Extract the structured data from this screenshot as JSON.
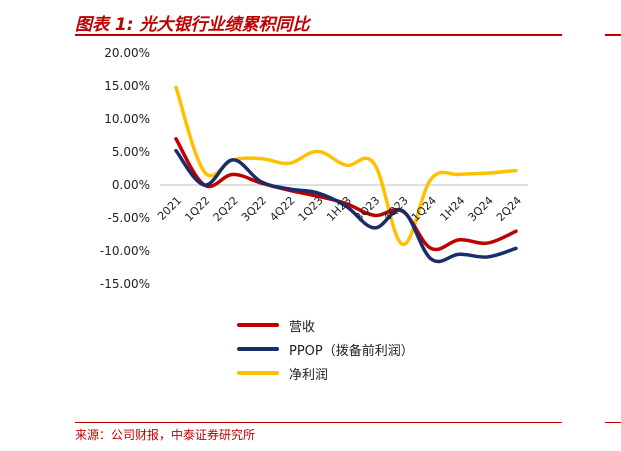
{
  "header": {
    "title": "图表 1:  光大银行业绩累积同比"
  },
  "footer": {
    "source": "来源：公司财报，中泰证券研究所"
  },
  "chart_data": {
    "type": "line",
    "title": "光大银行业绩累积同比",
    "categories": [
      "2021",
      "1Q22",
      "2Q22",
      "3Q22",
      "4Q22",
      "1Q23",
      "1H23",
      "3Q23",
      "4Q23",
      "1Q24",
      "1H24",
      "3Q24",
      "2Q24"
    ],
    "ylim": [
      -15,
      20
    ],
    "yticks": [
      "20.00%",
      "15.00%",
      "10.00%",
      "5.00%",
      "0.00%",
      "-5.00%",
      "-10.00%",
      "-15.00%"
    ],
    "ytick_values": [
      20,
      15,
      10,
      5,
      0,
      -5,
      -10,
      -15
    ],
    "grid": false,
    "legend_position": "bottom",
    "series": [
      {
        "name": "营收",
        "color": "#c00000",
        "values": [
          7.0,
          0.0,
          1.6,
          0.3,
          -0.8,
          -1.7,
          -2.8,
          -4.6,
          -4.0,
          -9.6,
          -8.3,
          -8.8,
          -7.0
        ]
      },
      {
        "name": "PPOP（拨备前利润）",
        "color": "#1a2d6b",
        "values": [
          5.2,
          0.0,
          3.8,
          0.5,
          -0.6,
          -1.2,
          -3.2,
          -6.5,
          -3.9,
          -11.2,
          -10.5,
          -10.9,
          -9.6
        ]
      },
      {
        "name": "净利润",
        "color": "#ffc000",
        "values": [
          14.8,
          2.0,
          3.8,
          4.0,
          3.3,
          5.1,
          3.0,
          3.2,
          -9.0,
          0.9,
          1.6,
          1.8,
          2.2
        ]
      }
    ]
  }
}
